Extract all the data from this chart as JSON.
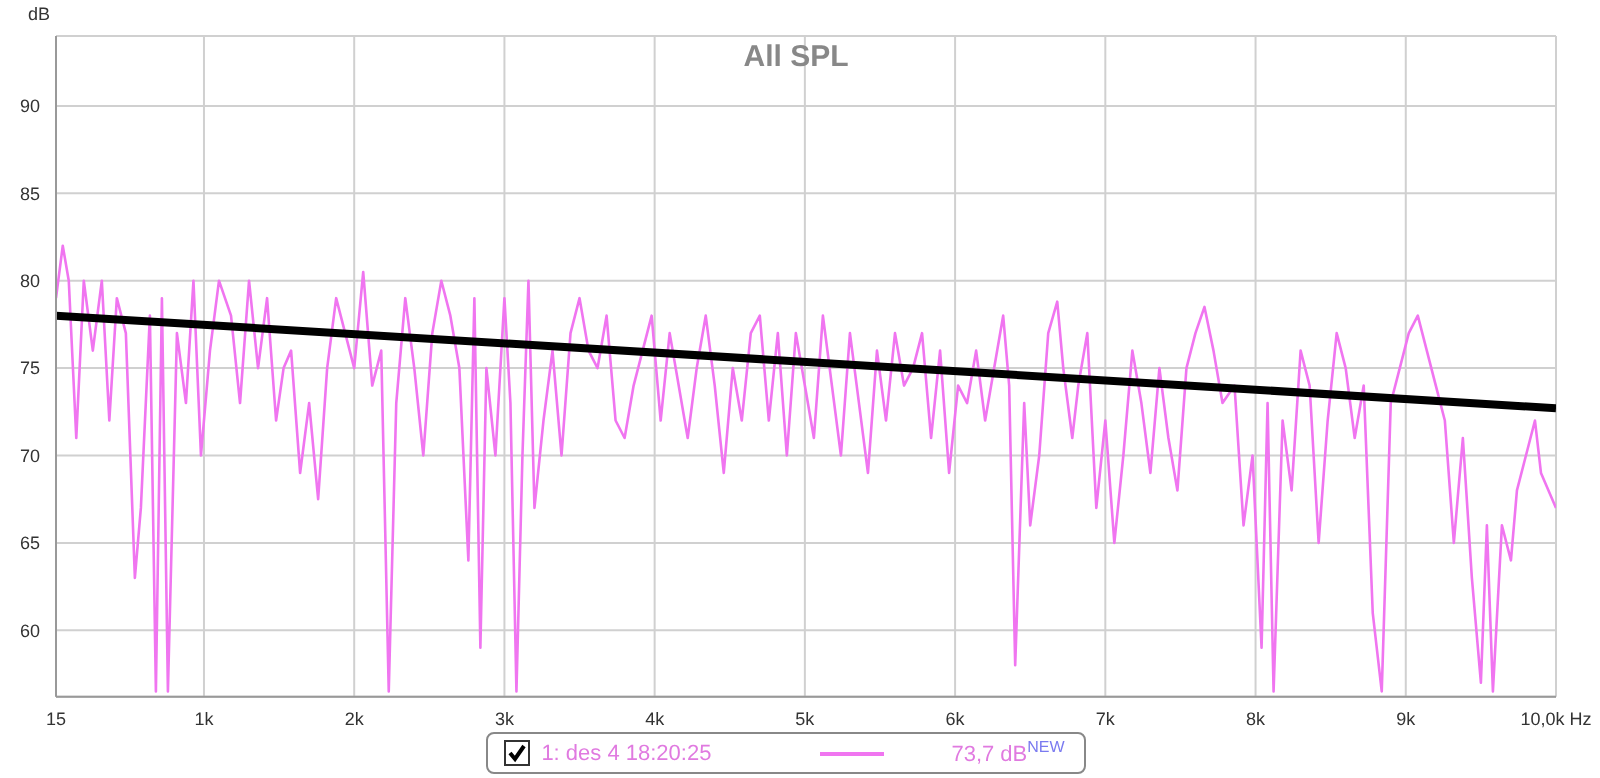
{
  "chart_data": {
    "type": "line",
    "title": "All SPL",
    "ylabel": "dB",
    "xlim": [
      15,
      10000
    ],
    "ylim": [
      56.2,
      94
    ],
    "xticks": [
      15,
      {
        "value": 1000,
        "label": "1k"
      },
      {
        "value": 2000,
        "label": "2k"
      },
      {
        "value": 3000,
        "label": "3k"
      },
      {
        "value": 4000,
        "label": "4k"
      },
      {
        "value": 5000,
        "label": "5k"
      },
      {
        "value": 6000,
        "label": "6k"
      },
      {
        "value": 7000,
        "label": "7k"
      },
      {
        "value": 8000,
        "label": "8k"
      },
      {
        "value": 9000,
        "label": "9k"
      },
      {
        "value": 10000,
        "label": "10,0k Hz"
      }
    ],
    "yticks": [
      60,
      65,
      70,
      75,
      80,
      85,
      90
    ],
    "grid": true,
    "legend": "bottom",
    "marker": "none",
    "line_style": "solid",
    "annotations": [
      "73,7 dB$^{NEW}$"
    ],
    "series": [
      {
        "name": "1: des 4 18:20:25",
        "color": "#f075f0",
        "x": [
          15,
          60,
          100,
          150,
          200,
          260,
          320,
          370,
          420,
          480,
          540,
          580,
          640,
          680,
          720,
          760,
          820,
          880,
          930,
          980,
          1040,
          1100,
          1180,
          1240,
          1300,
          1360,
          1420,
          1480,
          1530,
          1580,
          1640,
          1700,
          1760,
          1820,
          1880,
          1940,
          2000,
          2060,
          2120,
          2180,
          2230,
          2280,
          2340,
          2400,
          2460,
          2520,
          2580,
          2640,
          2700,
          2760,
          2800,
          2840,
          2880,
          2940,
          3000,
          3040,
          3080,
          3120,
          3160,
          3200,
          3260,
          3320,
          3380,
          3440,
          3500,
          3560,
          3620,
          3680,
          3740,
          3800,
          3860,
          3920,
          3980,
          4040,
          4100,
          4160,
          4220,
          4280,
          4340,
          4400,
          4460,
          4520,
          4580,
          4640,
          4700,
          4760,
          4820,
          4880,
          4940,
          5000,
          5060,
          5120,
          5180,
          5240,
          5300,
          5360,
          5420,
          5480,
          5540,
          5600,
          5660,
          5720,
          5780,
          5840,
          5900,
          5960,
          6020,
          6080,
          6140,
          6200,
          6260,
          6320,
          6360,
          6400,
          6460,
          6500,
          6560,
          6620,
          6680,
          6720,
          6780,
          6820,
          6880,
          6940,
          7000,
          7060,
          7120,
          7180,
          7240,
          7300,
          7360,
          7420,
          7480,
          7540,
          7600,
          7660,
          7720,
          7780,
          7860,
          7920,
          7980,
          8040,
          8080,
          8120,
          8180,
          8240,
          8300,
          8360,
          8420,
          8480,
          8540,
          8600,
          8660,
          8720,
          8780,
          8840,
          8900,
          8960,
          9020,
          9080,
          9140,
          9200,
          9260,
          9320,
          9380,
          9440,
          9500,
          9540,
          9580,
          9640,
          9700,
          9740,
          9800,
          9860,
          9900,
          10000
        ],
        "values": [
          79,
          82,
          80,
          71,
          80,
          76,
          80,
          72,
          79,
          77,
          63,
          67,
          78,
          56.5,
          79,
          56.5,
          77,
          73,
          80,
          70,
          76,
          80,
          78,
          73,
          80,
          75,
          79,
          72,
          75,
          76,
          69,
          73,
          67.5,
          75,
          79,
          77,
          75,
          80.5,
          74,
          76,
          56.5,
          73,
          79,
          75,
          70,
          77,
          80,
          78,
          75,
          64,
          79,
          59,
          75,
          70,
          79,
          73,
          56.5,
          70,
          80,
          67,
          72,
          76,
          70,
          77,
          79,
          76,
          75,
          78,
          72,
          71,
          74,
          76,
          78,
          72,
          77,
          74,
          71,
          75,
          78,
          74,
          69,
          75,
          72,
          77,
          78,
          72,
          77,
          70,
          77,
          74,
          71,
          78,
          74,
          70,
          77,
          73,
          69,
          76,
          72,
          77,
          74,
          75,
          77,
          71,
          76,
          69,
          74,
          73,
          76,
          72,
          75,
          78,
          74,
          58,
          73,
          66,
          70,
          77,
          78.8,
          75,
          71,
          74,
          77,
          67,
          72,
          65,
          70,
          76,
          73,
          69,
          75,
          71,
          68,
          75,
          77,
          78.5,
          76,
          73,
          74,
          66,
          70,
          59,
          73,
          56.5,
          72,
          68,
          76,
          74,
          65,
          72,
          77,
          75,
          71,
          74,
          61,
          56.5,
          73,
          75,
          77,
          78,
          76,
          74,
          72,
          65,
          71,
          63,
          57,
          66,
          56.5,
          66,
          64,
          68,
          70,
          72,
          69,
          67
        ]
      },
      {
        "type": "line",
        "color": "#000000",
        "x": [
          15,
          10000
        ],
        "values": [
          78,
          72.7
        ]
      }
    ]
  }
}
